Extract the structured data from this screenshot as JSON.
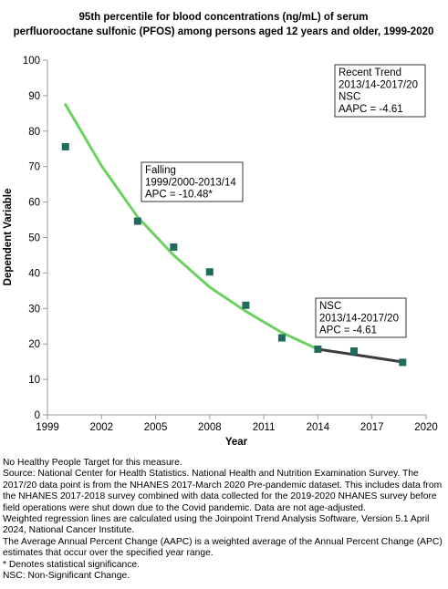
{
  "chart_data": {
    "type": "line",
    "title": [
      "95th percentile for blood concentrations (ng/mL) of serum",
      "perfluorooctane sulfonic (PFOS) among persons aged 12 years and older, 1999-2020"
    ],
    "xlabel": "Year",
    "ylabel": "Dependent Variable",
    "xlim": [
      1999,
      2020
    ],
    "ylim": [
      0,
      100
    ],
    "xticks": [
      1999,
      2002,
      2005,
      2008,
      2011,
      2014,
      2017,
      2020
    ],
    "yticks": [
      0,
      10,
      20,
      30,
      40,
      50,
      60,
      70,
      80,
      90,
      100
    ],
    "grid": false,
    "observed": {
      "x": [
        2000,
        2004,
        2006,
        2008,
        2010,
        2012,
        2014,
        2016,
        2018.7
      ],
      "y": [
        75.6,
        54.6,
        47.3,
        40.3,
        30.9,
        21.7,
        18.5,
        18.0,
        14.8
      ],
      "marker": "square",
      "color": "#1f6b5e"
    },
    "series": [
      {
        "x": [
          2000,
          2002,
          2004,
          2006,
          2008,
          2010,
          2012,
          2014
        ],
        "y": [
          87.5,
          70.2,
          55.8,
          45.0,
          36.0,
          29.2,
          23.2,
          18.5
        ],
        "color": "#6cd15f"
      },
      {
        "x": [
          2014,
          2016,
          2018.7
        ],
        "y": [
          18.5,
          17.0,
          14.9
        ],
        "color": "#3c3c3c"
      }
    ],
    "annotations": [
      {
        "lines": [
          "Recent Trend",
          "2013/14-2017/20",
          "NSC",
          "AAPC = -4.61"
        ],
        "anchor": "top-right"
      },
      {
        "lines": [
          "Falling",
          "1999/2000-2013/14",
          "APC = -10.48*"
        ],
        "anchor": "upper-middle"
      },
      {
        "lines": [
          "NSC",
          "2013/14-2017/20",
          "APC = -4.61"
        ],
        "anchor": "lower-right"
      }
    ]
  },
  "footnotes": [
    "No Healthy People Target for this measure.",
    "Source: National Center for Health Statistics. National Health and Nutrition Examination Survey. The 2017/20 data point is from the NHANES 2017-March 2020 Pre-pandemic dataset. This includes data from the NHANES 2017-2018 survey combined with data collected for the 2019-2020 NHANES survey before field operations were shut down due to the Covid pandemic. Data are not age-adjusted.",
    "Weighted regression lines are calculated using the Joinpoint Trend Analysis Software, Version 5.1 April 2024, National Cancer Institute.",
    "The Average Annual Percent Change (AAPC) is a weighted average of the Annual Percent Change (APC) estimates that occur over the specified year range.",
    "* Denotes statistical significance.",
    "NSC: Non-Significant Change."
  ]
}
